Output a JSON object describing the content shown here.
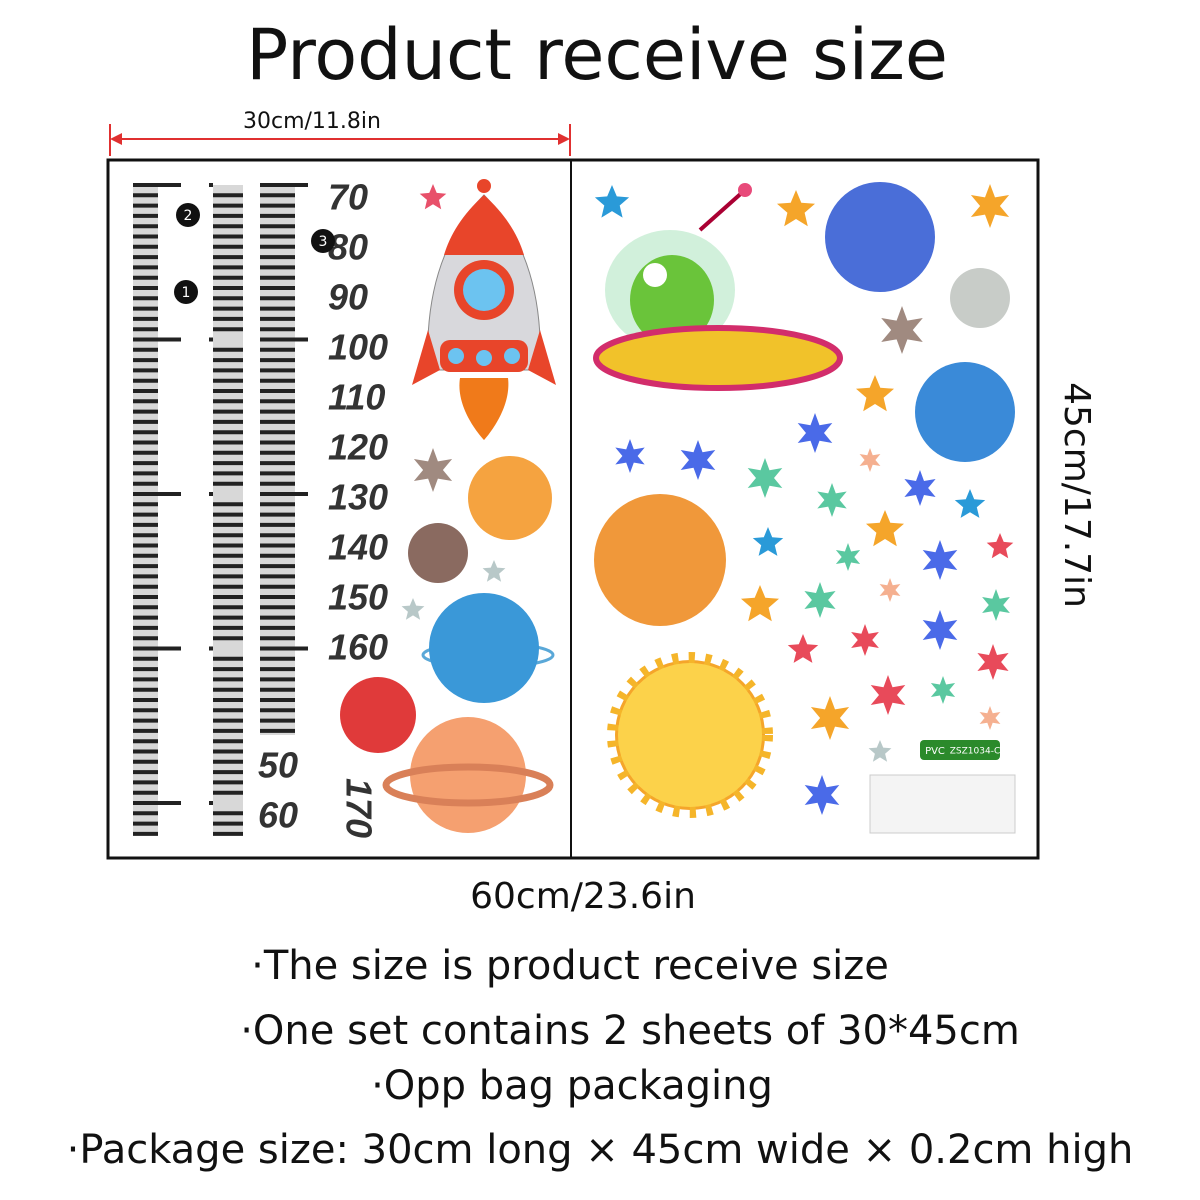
{
  "title": "Product receive size",
  "dimensions": {
    "top_width": "30cm/11.8in",
    "bottom_width": "60cm/23.6in",
    "height": "45cm/17.7in"
  },
  "left_sheet": {
    "ruler_labels": [
      70,
      80,
      90,
      100,
      110,
      120,
      130,
      140,
      150,
      160
    ],
    "bottom_labels": [
      50,
      60
    ],
    "rotated_label": 170,
    "markers": [
      2,
      1,
      3
    ]
  },
  "right_sheet": {
    "badge": "PVC",
    "code": "ZSZ1034-C"
  },
  "notes": [
    "·The size is product receive size",
    "·One set contains 2 sheets of 30*45cm",
    "·Opp bag packaging",
    "·Package size: 30cm long × 45cm wide × 0.2cm high"
  ]
}
